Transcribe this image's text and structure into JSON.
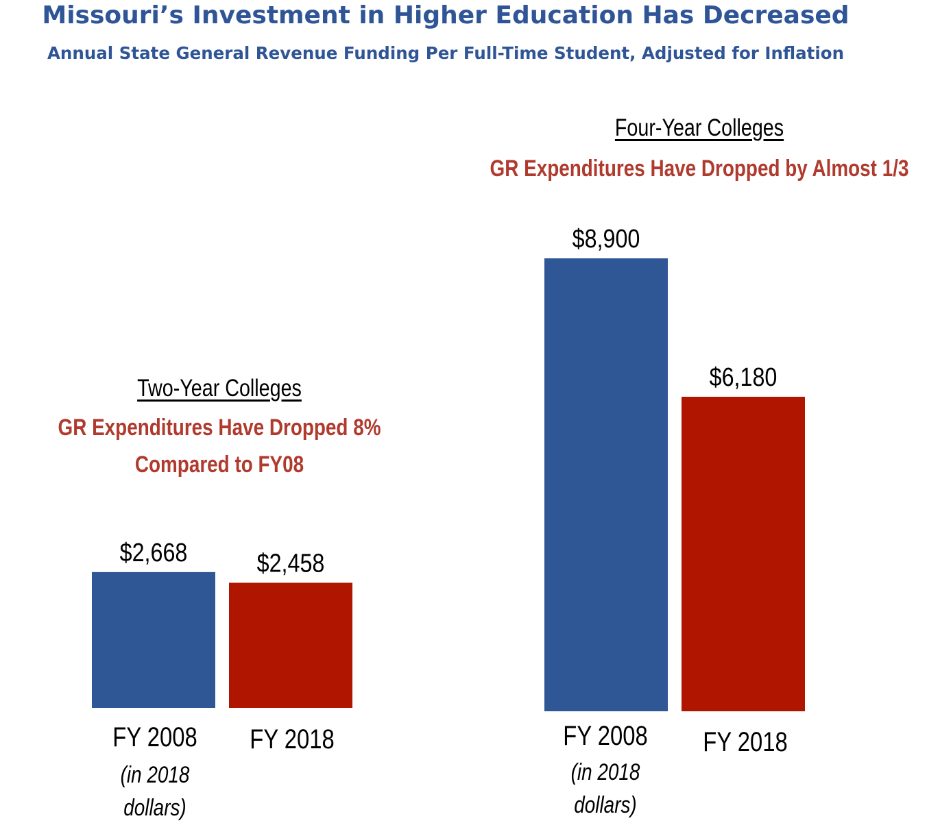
{
  "title": "Missouri’s Investment in Higher Education Has Decreased",
  "subtitle": "Annual State General Revenue Funding Per Full-Time Student,  Adjusted for Inflation",
  "colors": {
    "fy2008": "#2f5795",
    "fy2018": "#b01500",
    "title": "#2f5597",
    "highlight": "#b03a2e"
  },
  "chart_data": [
    {
      "type": "bar",
      "title": "Two-Year Colleges",
      "subtitle_lines": [
        "GR Expenditures Have Dropped 8%",
        "Compared to FY08"
      ],
      "categories": [
        "FY 2008",
        "FY 2018"
      ],
      "category_notes": [
        "(in 2018",
        "dollars)"
      ],
      "values": [
        2668,
        2458
      ],
      "value_labels": [
        "$2,668",
        "$2,458"
      ]
    },
    {
      "type": "bar",
      "title": "Four-Year Colleges",
      "subtitle_lines": [
        "GR Expenditures Have Dropped by Almost 1/3"
      ],
      "categories": [
        "FY 2008",
        "FY 2018"
      ],
      "category_notes": [
        "(in 2018",
        "dollars)"
      ],
      "values": [
        8900,
        6180
      ],
      "value_labels": [
        "$8,900",
        "$6,180"
      ]
    }
  ]
}
